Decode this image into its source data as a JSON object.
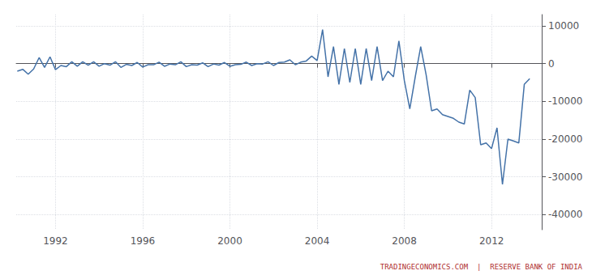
{
  "chart_data": {
    "type": "line",
    "x": [
      1990.25,
      1990.5,
      1990.75,
      1991.0,
      1991.25,
      1991.5,
      1991.75,
      1992.0,
      1992.25,
      1992.5,
      1992.75,
      1993.0,
      1993.25,
      1993.5,
      1993.75,
      1994.0,
      1994.25,
      1994.5,
      1994.75,
      1995.0,
      1995.25,
      1995.5,
      1995.75,
      1996.0,
      1996.25,
      1996.5,
      1996.75,
      1997.0,
      1997.25,
      1997.5,
      1997.75,
      1998.0,
      1998.25,
      1998.5,
      1998.75,
      1999.0,
      1999.25,
      1999.5,
      1999.75,
      2000.0,
      2000.25,
      2000.5,
      2000.75,
      2001.0,
      2001.25,
      2001.5,
      2001.75,
      2002.0,
      2002.25,
      2002.5,
      2002.75,
      2003.0,
      2003.25,
      2003.5,
      2003.75,
      2004.0,
      2004.25,
      2004.5,
      2004.75,
      2005.0,
      2005.25,
      2005.5,
      2005.75,
      2006.0,
      2006.25,
      2006.5,
      2006.75,
      2007.0,
      2007.25,
      2007.5,
      2007.75,
      2008.0,
      2008.25,
      2008.5,
      2008.75,
      2009.0,
      2009.25,
      2009.5,
      2009.75,
      2010.0,
      2010.25,
      2010.5,
      2010.75,
      2011.0,
      2011.25,
      2011.5,
      2011.75,
      2012.0,
      2012.25,
      2012.5,
      2012.75,
      2013.0,
      2013.25,
      2013.5,
      2013.75
    ],
    "values": [
      -2000,
      -1500,
      -2800,
      -1400,
      1600,
      -1000,
      1800,
      -1600,
      -500,
      -800,
      500,
      -700,
      500,
      -400,
      500,
      -700,
      0,
      -400,
      500,
      -1000,
      -200,
      -500,
      300,
      -900,
      -300,
      -300,
      400,
      -700,
      -100,
      -300,
      500,
      -800,
      -300,
      -400,
      200,
      -800,
      -100,
      -400,
      300,
      -700,
      -300,
      -200,
      400,
      -500,
      0,
      -100,
      500,
      -500,
      300,
      400,
      1000,
      -300,
      400,
      700,
      2000,
      800,
      9000,
      -3500,
      4500,
      -5500,
      4000,
      -5000,
      4000,
      -5500,
      4000,
      -4500,
      4500,
      -4500,
      -2000,
      -3500,
      6000,
      -4500,
      -12000,
      -3500,
      4500,
      -3000,
      -12500,
      -12000,
      -13500,
      -14000,
      -14500,
      -15500,
      -16000,
      -7000,
      -9000,
      -21500,
      -21000,
      -22500,
      -17000,
      -32000,
      -20000,
      -20500,
      -21000,
      -5500,
      -4000
    ],
    "color": "#4472a8",
    "xlim": [
      1990.2,
      2014.3
    ],
    "xticks": [
      1992,
      1996,
      2000,
      2004,
      2008,
      2012
    ],
    "ylim": [
      -44000,
      13000
    ],
    "yticks": [
      10000,
      0,
      -10000,
      -20000,
      -30000,
      -40000
    ],
    "grid": true,
    "annotations": [
      "TRADINGECONOMICS.COM  |  RESERVE BANK OF INDIA"
    ]
  }
}
